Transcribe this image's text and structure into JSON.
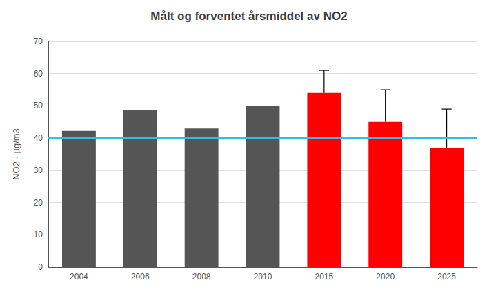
{
  "chart_data": {
    "type": "bar",
    "title": "Målt og forventet årsmiddel av NO2",
    "ylabel": "NO2 - µg/m3",
    "categories": [
      2004,
      2006,
      2008,
      2010,
      2015,
      2020,
      2025
    ],
    "values": [
      42.2,
      48.8,
      43.0,
      50.0,
      54.0,
      45.0,
      37.0
    ],
    "colors": [
      "#555555",
      "#555555",
      "#555555",
      "#555555",
      "#ff0000",
      "#ff0000",
      "#ff0000"
    ],
    "error_bars": [
      null,
      null,
      null,
      null,
      7.0,
      10.0,
      12.0
    ],
    "reference_line": {
      "value": 40,
      "color": "#33bbee"
    },
    "ylim": [
      0,
      70
    ],
    "yticks": [
      0,
      10,
      20,
      30,
      40,
      50,
      60,
      70
    ],
    "grid": true
  }
}
